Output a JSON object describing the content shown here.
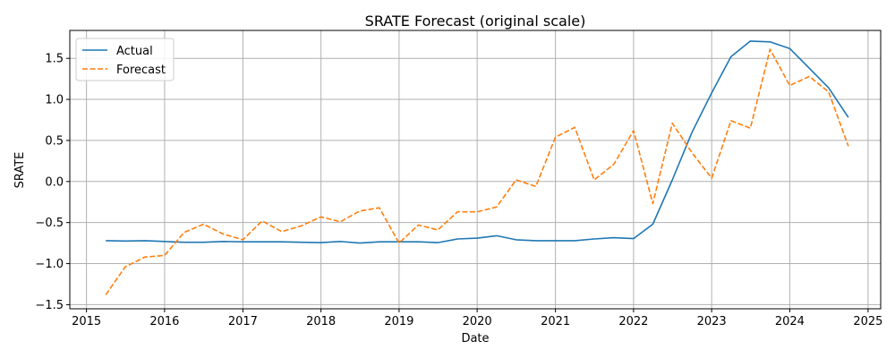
{
  "chart_data": {
    "type": "line",
    "title": "SRATE Forecast (original scale)",
    "xlabel": "Date",
    "ylabel": "SRATE",
    "x_ticks": [
      "2015",
      "2016",
      "2017",
      "2018",
      "2019",
      "2020",
      "2021",
      "2022",
      "2023",
      "2024",
      "2025"
    ],
    "y_ticks": [
      "−1.5",
      "−1.0",
      "−0.5",
      "0.0",
      "0.5",
      "1.0",
      "1.5"
    ],
    "xlim": [
      "2014-10-15",
      "2025-03-01"
    ],
    "ylim": [
      -1.55,
      1.84
    ],
    "grid": true,
    "legend_position": "top-left",
    "x": [
      "2015-04-01",
      "2015-07-01",
      "2015-10-01",
      "2016-01-01",
      "2016-04-01",
      "2016-07-01",
      "2016-10-01",
      "2017-01-01",
      "2017-04-01",
      "2017-07-01",
      "2017-10-01",
      "2018-01-01",
      "2018-04-01",
      "2018-07-01",
      "2018-10-01",
      "2019-01-01",
      "2019-04-01",
      "2019-07-01",
      "2019-10-01",
      "2020-01-01",
      "2020-04-01",
      "2020-07-01",
      "2020-10-01",
      "2021-01-01",
      "2021-04-01",
      "2021-07-01",
      "2021-10-01",
      "2022-01-01",
      "2022-04-01",
      "2022-07-01",
      "2022-10-01",
      "2023-01-01",
      "2023-04-01",
      "2023-07-01",
      "2023-10-01",
      "2024-01-01",
      "2024-04-01",
      "2024-07-01",
      "2024-10-01"
    ],
    "series": [
      {
        "name": "Actual",
        "color": "#1f77b4",
        "style": "solid",
        "values": [
          -0.72,
          -0.725,
          -0.72,
          -0.73,
          -0.74,
          -0.74,
          -0.73,
          -0.735,
          -0.735,
          -0.735,
          -0.74,
          -0.745,
          -0.73,
          -0.75,
          -0.735,
          -0.735,
          -0.735,
          -0.745,
          -0.7,
          -0.69,
          -0.66,
          -0.71,
          -0.72,
          -0.72,
          -0.72,
          -0.7,
          -0.685,
          -0.695,
          -0.52,
          0.02,
          0.6,
          1.08,
          1.52,
          1.71,
          1.7,
          1.62,
          1.38,
          1.14,
          0.78
        ]
      },
      {
        "name": "Forecast",
        "color": "#ff7f0e",
        "style": "dashed",
        "values": [
          -1.38,
          -1.04,
          -0.92,
          -0.9,
          -0.62,
          -0.52,
          -0.64,
          -0.71,
          -0.48,
          -0.61,
          -0.54,
          -0.43,
          -0.49,
          -0.36,
          -0.32,
          -0.75,
          -0.53,
          -0.59,
          -0.37,
          -0.37,
          -0.31,
          0.02,
          -0.06,
          0.54,
          0.66,
          0.02,
          0.21,
          0.62,
          -0.27,
          0.71,
          0.35,
          0.04,
          0.74,
          0.65,
          1.61,
          1.17,
          1.28,
          1.09,
          0.43
        ]
      }
    ]
  }
}
